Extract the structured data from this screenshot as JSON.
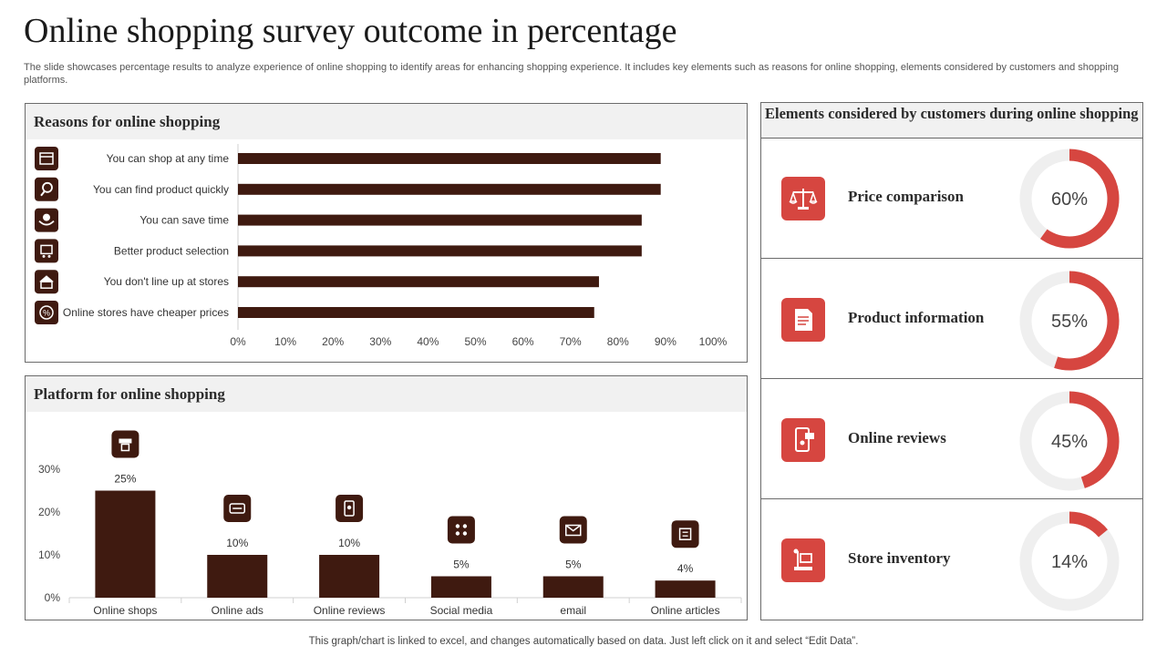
{
  "title": "Online shopping survey outcome in percentage",
  "subtitle": "The slide showcases percentage results to analyze experience of online shopping to identify areas for enhancing shopping experience. It includes key elements such as reasons for online shopping, elements considered by customers and shopping platforms.",
  "footer": "This graph/chart is linked to excel, and changes automatically based on data. Just left click on it and select “Edit Data”.",
  "colors": {
    "bar": "#3f1a10",
    "accent": "#d64640",
    "ring": "#efefef",
    "panel_head": "#f1f1f1"
  },
  "reasons_panel": {
    "title": "Reasons for online shopping"
  },
  "platform_panel": {
    "title": "Platform for online shopping"
  },
  "elements_panel": {
    "title": "Elements considered by customers during online shopping",
    "items": [
      {
        "label": "Price comparison",
        "value": 60,
        "display": "60%",
        "icon": "scales-icon"
      },
      {
        "label": "Product information",
        "value": 55,
        "display": "55%",
        "icon": "document-icon"
      },
      {
        "label": "Online reviews",
        "value": 45,
        "display": "45%",
        "icon": "phone-review-icon"
      },
      {
        "label": "Store inventory",
        "value": 14,
        "display": "14%",
        "icon": "inventory-icon"
      }
    ]
  },
  "chart_data": [
    {
      "type": "bar",
      "orientation": "horizontal",
      "title": "Reasons for online shopping",
      "categories": [
        "You can shop at any time",
        "You can find product quickly",
        "You can save time",
        "Better product selection",
        "You don't line up at stores",
        "Online stores have cheaper prices"
      ],
      "values": [
        89,
        89,
        85,
        85,
        76,
        75
      ],
      "icons": [
        "calendar-icon",
        "magnifier-icon",
        "hand-coin-icon",
        "cart-icon",
        "store-icon",
        "percent-icon"
      ],
      "xlim": [
        0,
        100
      ],
      "xticks": [
        "0%",
        "10%",
        "20%",
        "30%",
        "40%",
        "50%",
        "60%",
        "70%",
        "80%",
        "90%",
        "100%"
      ]
    },
    {
      "type": "bar",
      "title": "Platform for online shopping",
      "categories": [
        "Online shops",
        "Online ads",
        "Online reviews",
        "Social media",
        "email",
        "Online articles"
      ],
      "values": [
        25,
        10,
        10,
        5,
        5,
        4
      ],
      "labels": [
        "25%",
        "10%",
        "10%",
        "5%",
        "5%",
        "4%"
      ],
      "icons": [
        "shop-icon",
        "ad-icon",
        "review-icon",
        "social-icon",
        "email-icon",
        "article-icon"
      ],
      "ylim": [
        0,
        30
      ],
      "yticks": [
        "0%",
        "10%",
        "20%",
        "30%"
      ]
    }
  ]
}
